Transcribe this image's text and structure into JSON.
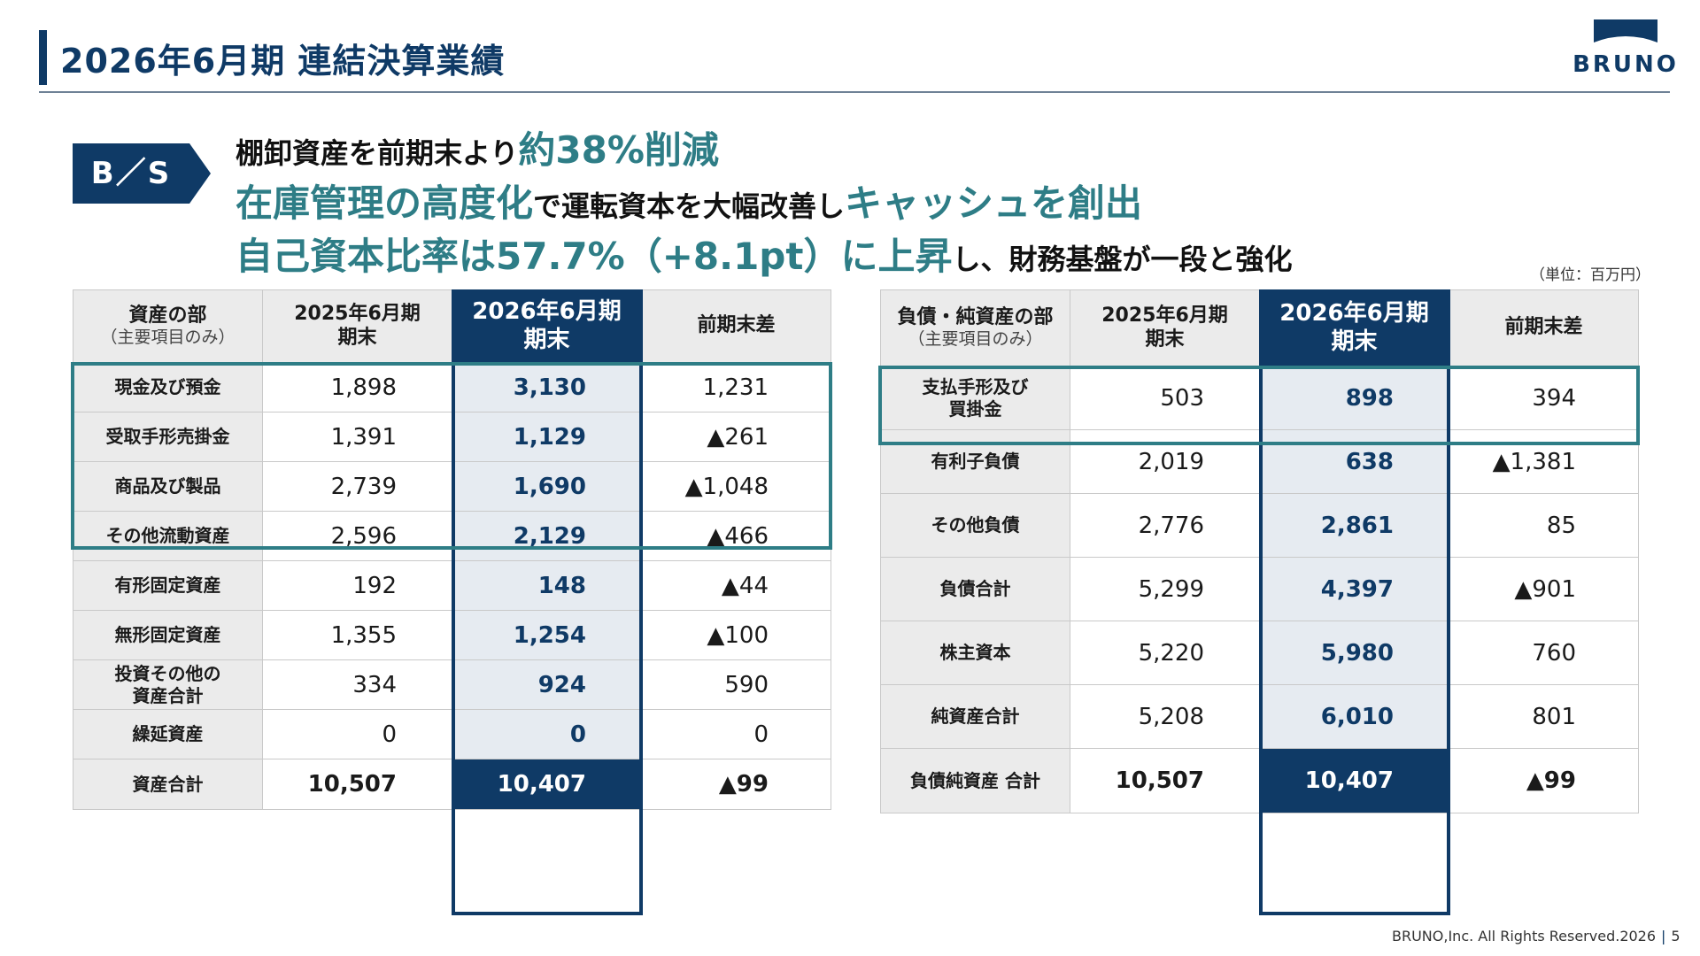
{
  "header": {
    "title": "2026年6月期 連結決算業績",
    "logo_text": "BRUNO"
  },
  "badge": {
    "label": "B／S"
  },
  "headlines": {
    "line1_a": "棚卸資産を前期末より",
    "line1_b": "約38%削減",
    "line2_a": "在庫管理の高度化",
    "line2_b": "で運転資本を大幅改善し",
    "line2_c": "キャッシュを創出",
    "line3_a": "自己資本比率は57.7%（+8.1pt）に上昇",
    "line3_b": "し、財務基盤が一段と強化"
  },
  "unit_note": "（単位：百万円）",
  "assets": {
    "header": {
      "section": "資産の部",
      "section_sub": "（主要項目のみ）",
      "prev_1": "2025年6月期",
      "prev_2": "期末",
      "cur_1": "2026年6月期",
      "cur_2": "期末",
      "diff": "前期末差"
    },
    "rows": [
      {
        "label": "現金及び預金",
        "prev": "1,898",
        "cur": "3,130",
        "diff": "1,231"
      },
      {
        "label": "受取手形売掛金",
        "prev": "1,391",
        "cur": "1,129",
        "diff": "▲261"
      },
      {
        "label": "商品及び製品",
        "prev": "2,739",
        "cur": "1,690",
        "diff": "▲1,048"
      },
      {
        "label": "その他流動資産",
        "prev": "2,596",
        "cur": "2,129",
        "diff": "▲466"
      },
      {
        "label": "有形固定資産",
        "prev": "192",
        "cur": "148",
        "diff": "▲44"
      },
      {
        "label": "無形固定資産",
        "prev": "1,355",
        "cur": "1,254",
        "diff": "▲100"
      },
      {
        "label": "投資その他の\n資産合計",
        "prev": "334",
        "cur": "924",
        "diff": "590"
      },
      {
        "label": "繰延資産",
        "prev": "0",
        "cur": "0",
        "diff": "0"
      }
    ],
    "total": {
      "label": "資産合計",
      "prev": "10,507",
      "cur": "10,407",
      "diff": "▲99"
    }
  },
  "liabilities": {
    "header": {
      "section": "負債・純資産の部",
      "section_sub": "（主要項目のみ）",
      "prev_1": "2025年6月期",
      "prev_2": "期末",
      "cur_1": "2026年6月期",
      "cur_2": "期末",
      "diff": "前期末差"
    },
    "rows": [
      {
        "label": "支払手形及び\n買掛金",
        "prev": "503",
        "cur": "898",
        "diff": "394"
      },
      {
        "label": "有利子負債",
        "prev": "2,019",
        "cur": "638",
        "diff": "▲1,381"
      },
      {
        "label": "その他負債",
        "prev": "2,776",
        "cur": "2,861",
        "diff": "85"
      },
      {
        "label": "負債合計",
        "prev": "5,299",
        "cur": "4,397",
        "diff": "▲901"
      },
      {
        "label": "株主資本",
        "prev": "5,220",
        "cur": "5,980",
        "diff": "760"
      },
      {
        "label": "純資産合計",
        "prev": "5,208",
        "cur": "6,010",
        "diff": "801"
      }
    ],
    "total": {
      "label": "負債純資産 合計",
      "prev": "10,507",
      "cur": "10,407",
      "diff": "▲99"
    }
  },
  "footer": {
    "copyright": "BRUNO,Inc. All Rights Reserved.2026",
    "separator": "|",
    "page_number": "5"
  },
  "colors": {
    "navy": "#0f3a66",
    "teal": "#2e7d86",
    "header_gray": "#ebebeb",
    "current_col": "#e6ebf1"
  }
}
